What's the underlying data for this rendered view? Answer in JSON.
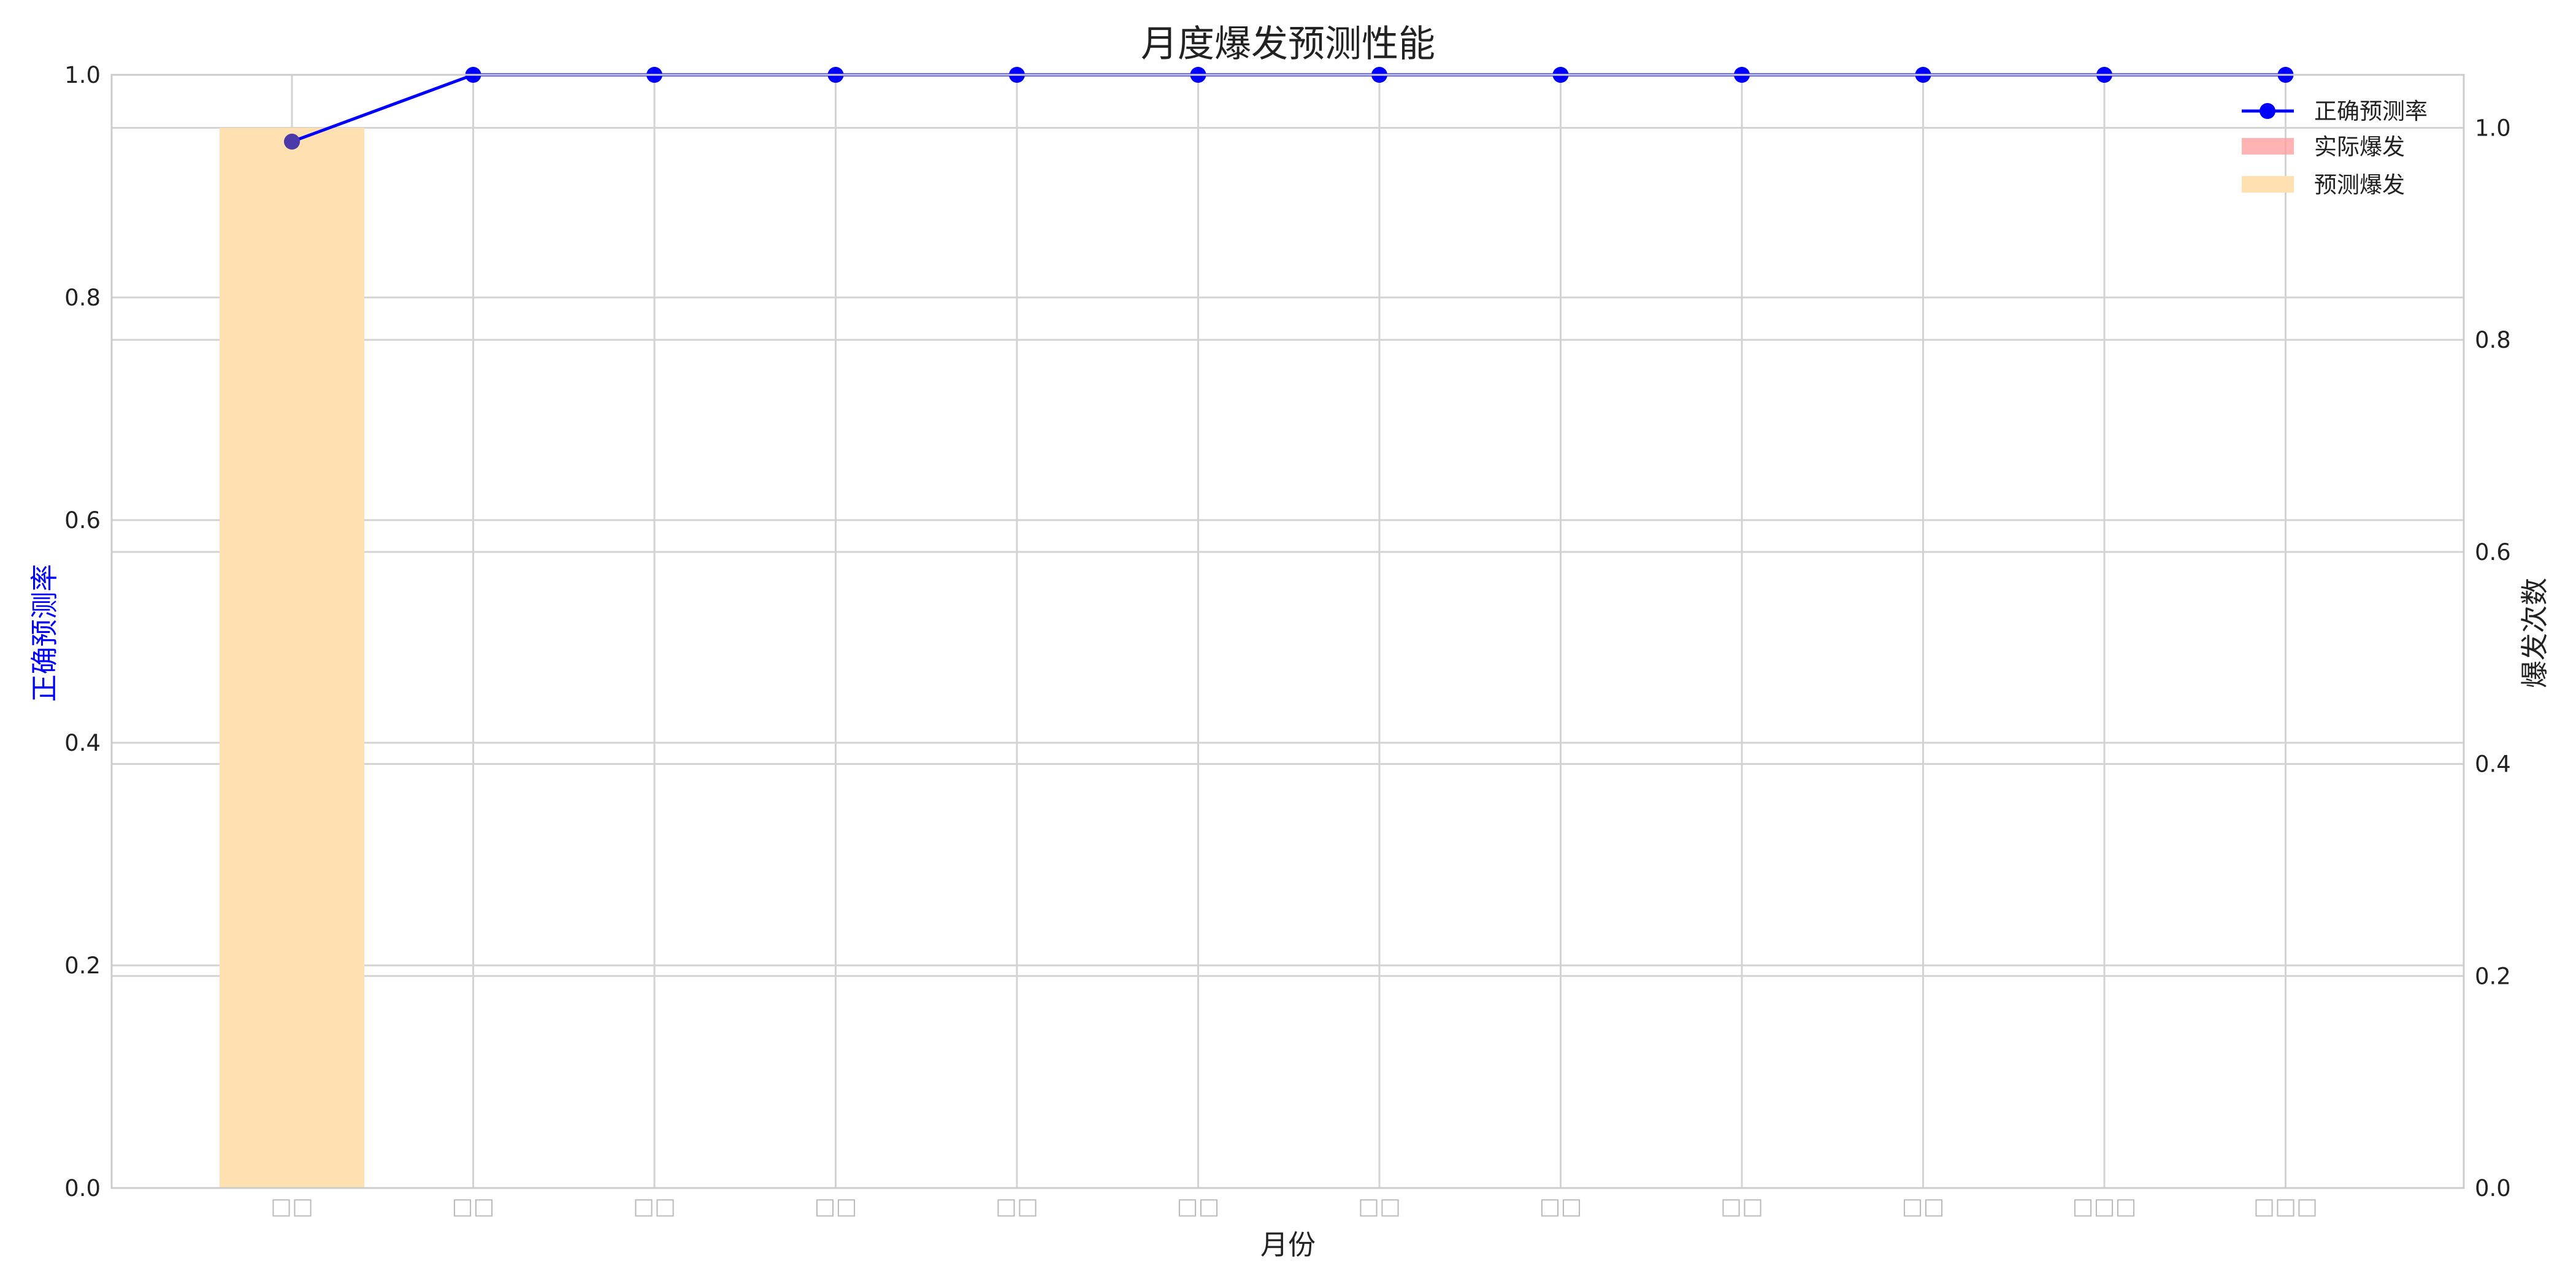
{
  "chart_data": {
    "type": "bar",
    "title": "月度爆发预测性能",
    "xlabel": "月份",
    "ylabel_left": "正确预测率",
    "ylabel_right": "爆发次数",
    "categories": [
      "□□",
      "□□",
      "□□",
      "□□",
      "□□",
      "□□",
      "□□",
      "□□",
      "□□",
      "□□",
      "□□□",
      "□□□"
    ],
    "ylim_left": [
      0,
      1.0
    ],
    "ylim_right": [
      0,
      1.05
    ],
    "yticks_left": [
      "0.0",
      "0.2",
      "0.4",
      "0.6",
      "0.8",
      "1.0"
    ],
    "yticks_right": [
      "0.0",
      "0.2",
      "0.4",
      "0.6",
      "0.8",
      "1.0"
    ],
    "grid": true,
    "legend_position": "top-right",
    "series": [
      {
        "name": "正确预测率",
        "kind": "line",
        "axis": "left",
        "color": "#0000ff",
        "values": [
          0.94,
          1,
          1,
          1,
          1,
          1,
          1,
          1,
          1,
          1,
          1,
          1
        ]
      },
      {
        "name": "实际爆发",
        "kind": "bar",
        "axis": "right",
        "color": "#ff9999",
        "values": [
          1,
          0,
          0,
          0,
          0,
          0,
          0,
          0,
          0,
          0,
          0,
          0
        ]
      },
      {
        "name": "预测爆发",
        "kind": "bar",
        "axis": "right",
        "color": "#ffe0b0",
        "values": [
          1,
          0,
          0,
          0,
          0,
          0,
          0,
          0,
          0,
          0,
          0,
          0
        ]
      }
    ]
  }
}
